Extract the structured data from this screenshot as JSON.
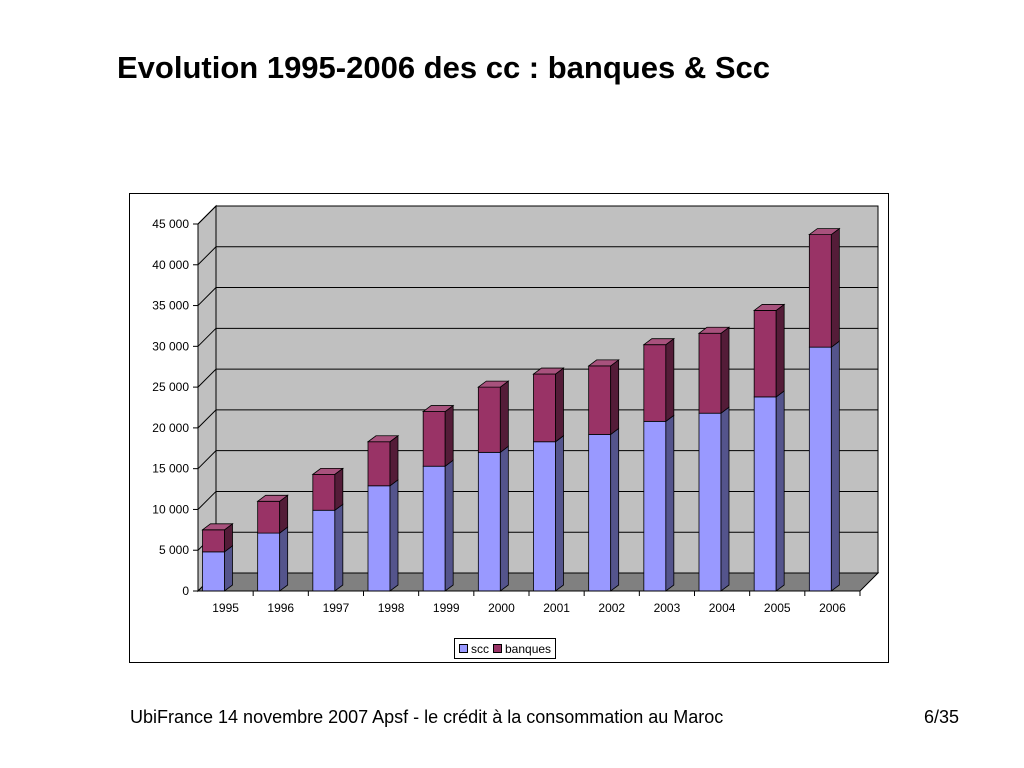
{
  "slide": {
    "title": "Evolution 1995-2006 des cc : banques & Scc",
    "footer_text": "UbiFrance 14 novembre 2007  Apsf - le crédit à la consommation au Maroc",
    "page_number": "6/35"
  },
  "chart_data": {
    "type": "bar",
    "stacked": true,
    "three_d": true,
    "title": "",
    "categories": [
      "1995",
      "1996",
      "1997",
      "1998",
      "1999",
      "2000",
      "2001",
      "2002",
      "2003",
      "2004",
      "2005",
      "2006"
    ],
    "series": [
      {
        "name": "scc",
        "color": "#9999ff",
        "values": [
          4800,
          7100,
          9900,
          12900,
          15300,
          17000,
          18300,
          19200,
          20800,
          21800,
          23800,
          29900
        ]
      },
      {
        "name": "banques",
        "color": "#993366",
        "values": [
          2700,
          3900,
          4400,
          5400,
          6700,
          8000,
          8300,
          8400,
          9400,
          9800,
          10600,
          13800
        ]
      }
    ],
    "y_ticks": [
      "0",
      "5 000",
      "10 000",
      "15 000",
      "20 000",
      "25 000",
      "30 000",
      "35 000",
      "40 000",
      "45 000"
    ],
    "ylim": [
      0,
      45000
    ],
    "y_step": 5000,
    "gridlines": true,
    "wall_color": "#c0c0c0",
    "floor_color": "#808080",
    "legend_position": "bottom"
  }
}
